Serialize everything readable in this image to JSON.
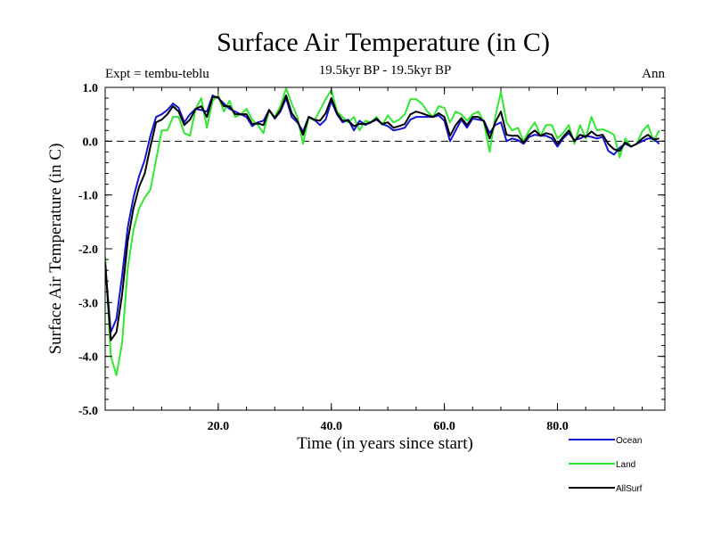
{
  "chart_data": {
    "type": "line",
    "title": "Surface Air Temperature (in C)",
    "subtitle": "19.5kyr BP - 19.5kyr BP",
    "left_label": "Expt = tembu-teblu",
    "right_label": "Ann",
    "xlabel": "Time (in years since start)",
    "ylabel": "Surface Air Temperature (in C)",
    "xlim": [
      0,
      99
    ],
    "ylim": [
      -5.0,
      1.0
    ],
    "x_ticks": [
      20,
      40,
      60,
      80
    ],
    "x_tick_labels": [
      "20.0",
      "40.0",
      "60.0",
      "80.0"
    ],
    "y_ticks": [
      -5,
      -4,
      -3,
      -2,
      -1,
      0,
      1
    ],
    "y_tick_labels": [
      "-5.0",
      "-4.0",
      "-3.0",
      "-2.0",
      "-1.0",
      "0.0",
      "1.0"
    ],
    "zero_line": "dashed",
    "grid": false,
    "legend_position": "bottom-right",
    "x_start": 0,
    "x_step": 1,
    "series": [
      {
        "name": "Ocean",
        "color": "#1414d2",
        "values": [
          -2.3,
          -3.55,
          -3.3,
          -2.5,
          -1.6,
          -1.05,
          -0.65,
          -0.35,
          0.1,
          0.45,
          0.5,
          0.58,
          0.7,
          0.62,
          0.35,
          0.5,
          0.6,
          0.58,
          0.55,
          0.85,
          0.8,
          0.7,
          0.6,
          0.55,
          0.5,
          0.45,
          0.28,
          0.35,
          0.38,
          0.58,
          0.42,
          0.55,
          0.8,
          0.45,
          0.35,
          0.18,
          0.45,
          0.4,
          0.3,
          0.4,
          0.75,
          0.5,
          0.35,
          0.4,
          0.2,
          0.38,
          0.3,
          0.35,
          0.4,
          0.32,
          0.28,
          0.2,
          0.22,
          0.25,
          0.4,
          0.45,
          0.45,
          0.45,
          0.45,
          0.48,
          0.38,
          0.0,
          0.2,
          0.4,
          0.25,
          0.42,
          0.4,
          0.38,
          0.15,
          0.3,
          0.35,
          0.0,
          0.05,
          0.02,
          -0.05,
          0.08,
          0.12,
          0.1,
          0.1,
          0.05,
          -0.1,
          0.05,
          0.15,
          0.02,
          0.05,
          0.1,
          0.08,
          0.05,
          0.08,
          -0.18,
          -0.25,
          -0.12,
          -0.05,
          -0.1,
          -0.05,
          0.0,
          0.05,
          0.05,
          -0.05
        ]
      },
      {
        "name": "Land",
        "color": "#32e632",
        "values": [
          -2.15,
          -4.0,
          -4.35,
          -3.75,
          -2.35,
          -1.65,
          -1.25,
          -1.05,
          -0.9,
          -0.35,
          0.2,
          0.2,
          0.45,
          0.45,
          0.15,
          0.1,
          0.6,
          0.8,
          0.25,
          0.75,
          0.85,
          0.55,
          0.75,
          0.45,
          0.5,
          0.6,
          0.4,
          0.3,
          0.15,
          0.58,
          0.45,
          0.65,
          0.98,
          0.7,
          0.45,
          -0.05,
          0.45,
          0.38,
          0.58,
          0.78,
          0.95,
          0.55,
          0.45,
          0.35,
          0.45,
          0.2,
          0.38,
          0.35,
          0.45,
          0.3,
          0.48,
          0.35,
          0.4,
          0.5,
          0.78,
          0.78,
          0.7,
          0.55,
          0.45,
          0.65,
          0.62,
          0.35,
          0.55,
          0.5,
          0.38,
          0.5,
          0.55,
          0.35,
          -0.2,
          0.45,
          0.92,
          0.35,
          0.2,
          0.25,
          0.0,
          0.2,
          0.35,
          0.1,
          0.3,
          0.3,
          0.05,
          0.15,
          0.3,
          -0.05,
          0.3,
          0.05,
          0.45,
          0.2,
          0.22,
          0.18,
          0.12,
          -0.3,
          0.05,
          -0.1,
          -0.05,
          0.18,
          0.3,
          0.0,
          0.2
        ]
      },
      {
        "name": "AllSurf",
        "color": "#000000",
        "values": [
          -2.25,
          -3.7,
          -3.55,
          -2.85,
          -1.85,
          -1.25,
          -0.85,
          -0.6,
          -0.1,
          0.35,
          0.4,
          0.5,
          0.65,
          0.55,
          0.3,
          0.4,
          0.6,
          0.65,
          0.45,
          0.82,
          0.82,
          0.65,
          0.65,
          0.5,
          0.5,
          0.5,
          0.32,
          0.33,
          0.3,
          0.58,
          0.43,
          0.58,
          0.85,
          0.52,
          0.38,
          0.12,
          0.45,
          0.4,
          0.38,
          0.52,
          0.8,
          0.52,
          0.38,
          0.38,
          0.28,
          0.32,
          0.32,
          0.35,
          0.42,
          0.32,
          0.35,
          0.25,
          0.28,
          0.32,
          0.5,
          0.55,
          0.52,
          0.48,
          0.45,
          0.52,
          0.45,
          0.1,
          0.3,
          0.43,
          0.3,
          0.45,
          0.45,
          0.37,
          0.05,
          0.35,
          0.55,
          0.12,
          0.1,
          0.1,
          -0.03,
          0.12,
          0.2,
          0.1,
          0.15,
          0.12,
          -0.05,
          0.08,
          0.2,
          0.0,
          0.12,
          0.08,
          0.18,
          0.1,
          0.12,
          -0.05,
          -0.15,
          -0.18,
          -0.02,
          -0.1,
          -0.05,
          0.05,
          0.12,
          0.03,
          0.05
        ]
      }
    ]
  }
}
